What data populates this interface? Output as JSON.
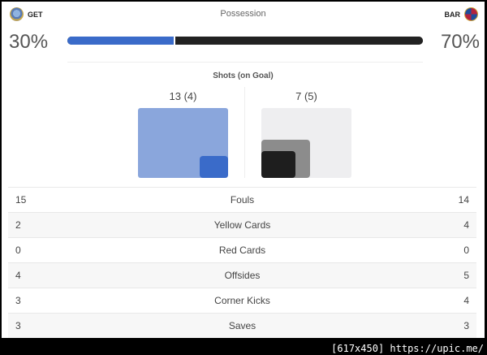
{
  "header": {
    "home_team": "GET",
    "away_team": "BAR",
    "possession_title": "Possession",
    "home_pct_label": "30%",
    "away_pct_label": "70%",
    "home_possession": 30,
    "away_possession": 70
  },
  "shots": {
    "title": "Shots (on Goal)",
    "home_label": "13 (4)",
    "away_label": "7 (5)",
    "home_shots": 13,
    "home_on_goal": 4,
    "away_shots": 7,
    "away_on_goal": 5
  },
  "stats": [
    {
      "home": "15",
      "label": "Fouls",
      "away": "14"
    },
    {
      "home": "2",
      "label": "Yellow Cards",
      "away": "4"
    },
    {
      "home": "0",
      "label": "Red Cards",
      "away": "0"
    },
    {
      "home": "4",
      "label": "Offsides",
      "away": "5"
    },
    {
      "home": "3",
      "label": "Corner Kicks",
      "away": "4"
    },
    {
      "home": "3",
      "label": "Saves",
      "away": "3"
    }
  ],
  "colors": {
    "home": "#3a6bc9",
    "away": "#222222"
  },
  "watermark": "[617x450] https://upic.me/"
}
